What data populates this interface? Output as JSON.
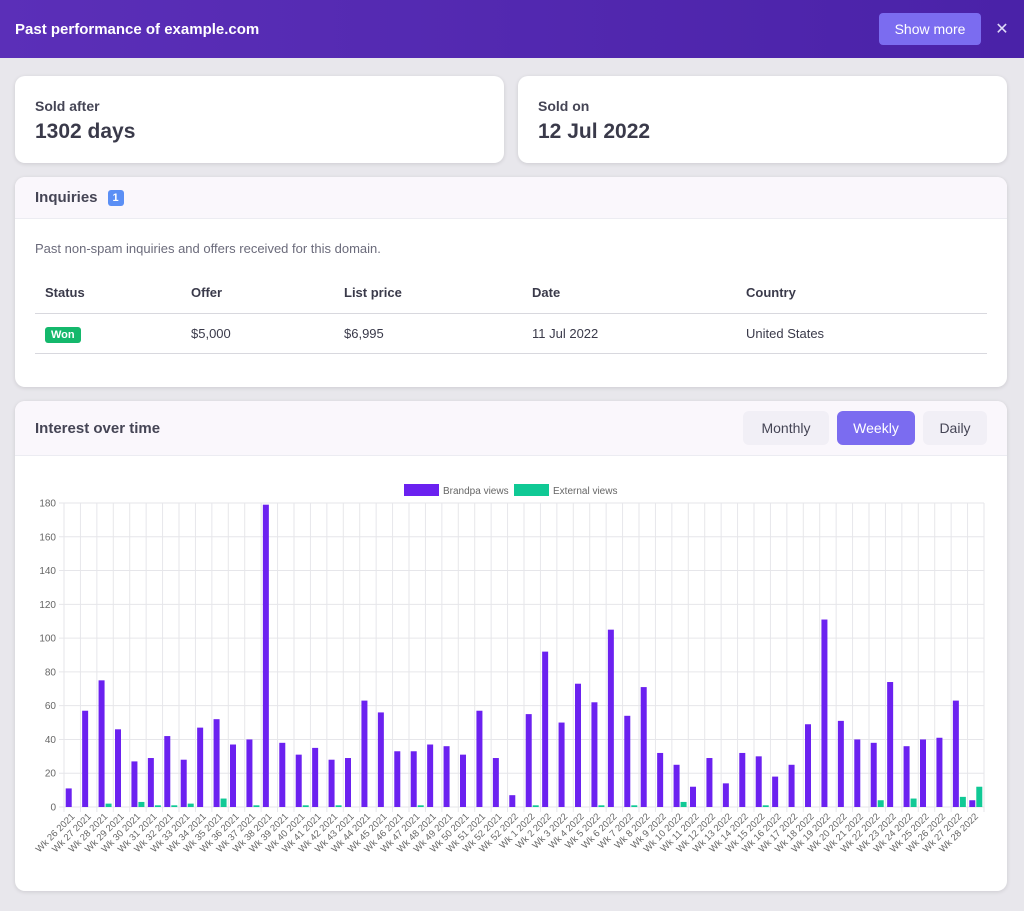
{
  "header": {
    "title": "Past performance of example.com",
    "show_more_label": "Show more",
    "close_icon": "close-icon"
  },
  "stats": {
    "sold_after": {
      "label": "Sold after",
      "value": "1302 days"
    },
    "sold_on": {
      "label": "Sold on",
      "value": "12 Jul 2022"
    }
  },
  "inquiries": {
    "title": "Inquiries",
    "count": "1",
    "description": "Past non-spam inquiries and offers received for this domain.",
    "columns": [
      "Status",
      "Offer",
      "List price",
      "Date",
      "Country"
    ],
    "rows": [
      {
        "status": "Won",
        "offer": "$5,000",
        "list_price": "$6,995",
        "date": "11 Jul 2022",
        "country": "United States"
      }
    ]
  },
  "interest": {
    "title": "Interest over time",
    "tabs": [
      {
        "label": "Monthly",
        "active": false
      },
      {
        "label": "Weekly",
        "active": true
      },
      {
        "label": "Daily",
        "active": false
      }
    ]
  },
  "colors": {
    "brandpa": "#6b21f0",
    "external": "#10c995",
    "accent": "#7b6cf0",
    "won": "#14b86c"
  },
  "chart_data": {
    "type": "bar",
    "categories": [
      "Wk 26 2021",
      "Wk 27 2021",
      "Wk 28 2021",
      "Wk 29 2021",
      "Wk 30 2021",
      "Wk 31 2021",
      "Wk 32 2021",
      "Wk 33 2021",
      "Wk 34 2021",
      "Wk 35 2021",
      "Wk 36 2021",
      "Wk 37 2021",
      "Wk 38 2021",
      "Wk 39 2021",
      "Wk 40 2021",
      "Wk 41 2021",
      "Wk 42 2021",
      "Wk 43 2021",
      "Wk 44 2021",
      "Wk 45 2021",
      "Wk 46 2021",
      "Wk 47 2021",
      "Wk 48 2021",
      "Wk 49 2021",
      "Wk 50 2021",
      "Wk 51 2021",
      "Wk 52 2021",
      "Wk 52 2022",
      "Wk 1 2022",
      "Wk 2 2022",
      "Wk 3 2022",
      "Wk 4 2022",
      "Wk 5 2022",
      "Wk 6 2022",
      "Wk 7 2022",
      "Wk 8 2022",
      "Wk 9 2022",
      "Wk 10 2022",
      "Wk 11 2022",
      "Wk 12 2022",
      "Wk 13 2022",
      "Wk 14 2022",
      "Wk 15 2022",
      "Wk 16 2022",
      "Wk 17 2022",
      "Wk 18 2022",
      "Wk 19 2022",
      "Wk 20 2022",
      "Wk 21 2022",
      "Wk 22 2022",
      "Wk 23 2022",
      "Wk 24 2022",
      "Wk 25 2022",
      "Wk 26 2022",
      "Wk 27 2022",
      "Wk 28 2022"
    ],
    "series": [
      {
        "name": "Brandpa views",
        "values": [
          11,
          57,
          75,
          46,
          27,
          29,
          42,
          28,
          47,
          52,
          37,
          40,
          179,
          38,
          31,
          35,
          28,
          29,
          63,
          56,
          33,
          33,
          37,
          36,
          31,
          57,
          29,
          7,
          55,
          92,
          50,
          73,
          62,
          105,
          54,
          71,
          32,
          25,
          12,
          29,
          14,
          32,
          30,
          18,
          25,
          49,
          111,
          51,
          40,
          38,
          74,
          36,
          40,
          41,
          63,
          4
        ]
      },
      {
        "name": "External views",
        "values": [
          0,
          0,
          2,
          0,
          3,
          1,
          1,
          2,
          0,
          5,
          0,
          1,
          0,
          0,
          1,
          0,
          1,
          0,
          0,
          0,
          0,
          1,
          0,
          0,
          0,
          0,
          0,
          0,
          1,
          0,
          0,
          0,
          1,
          0,
          1,
          0,
          0,
          3,
          0,
          0,
          0,
          0,
          1,
          0,
          0,
          0,
          0,
          0,
          0,
          4,
          0,
          5,
          0,
          0,
          6,
          12
        ]
      }
    ],
    "ylim": [
      0,
      180
    ],
    "yticks": [
      0,
      20,
      40,
      60,
      80,
      100,
      120,
      140,
      160,
      180
    ],
    "grid": true,
    "legend": "top-center"
  }
}
